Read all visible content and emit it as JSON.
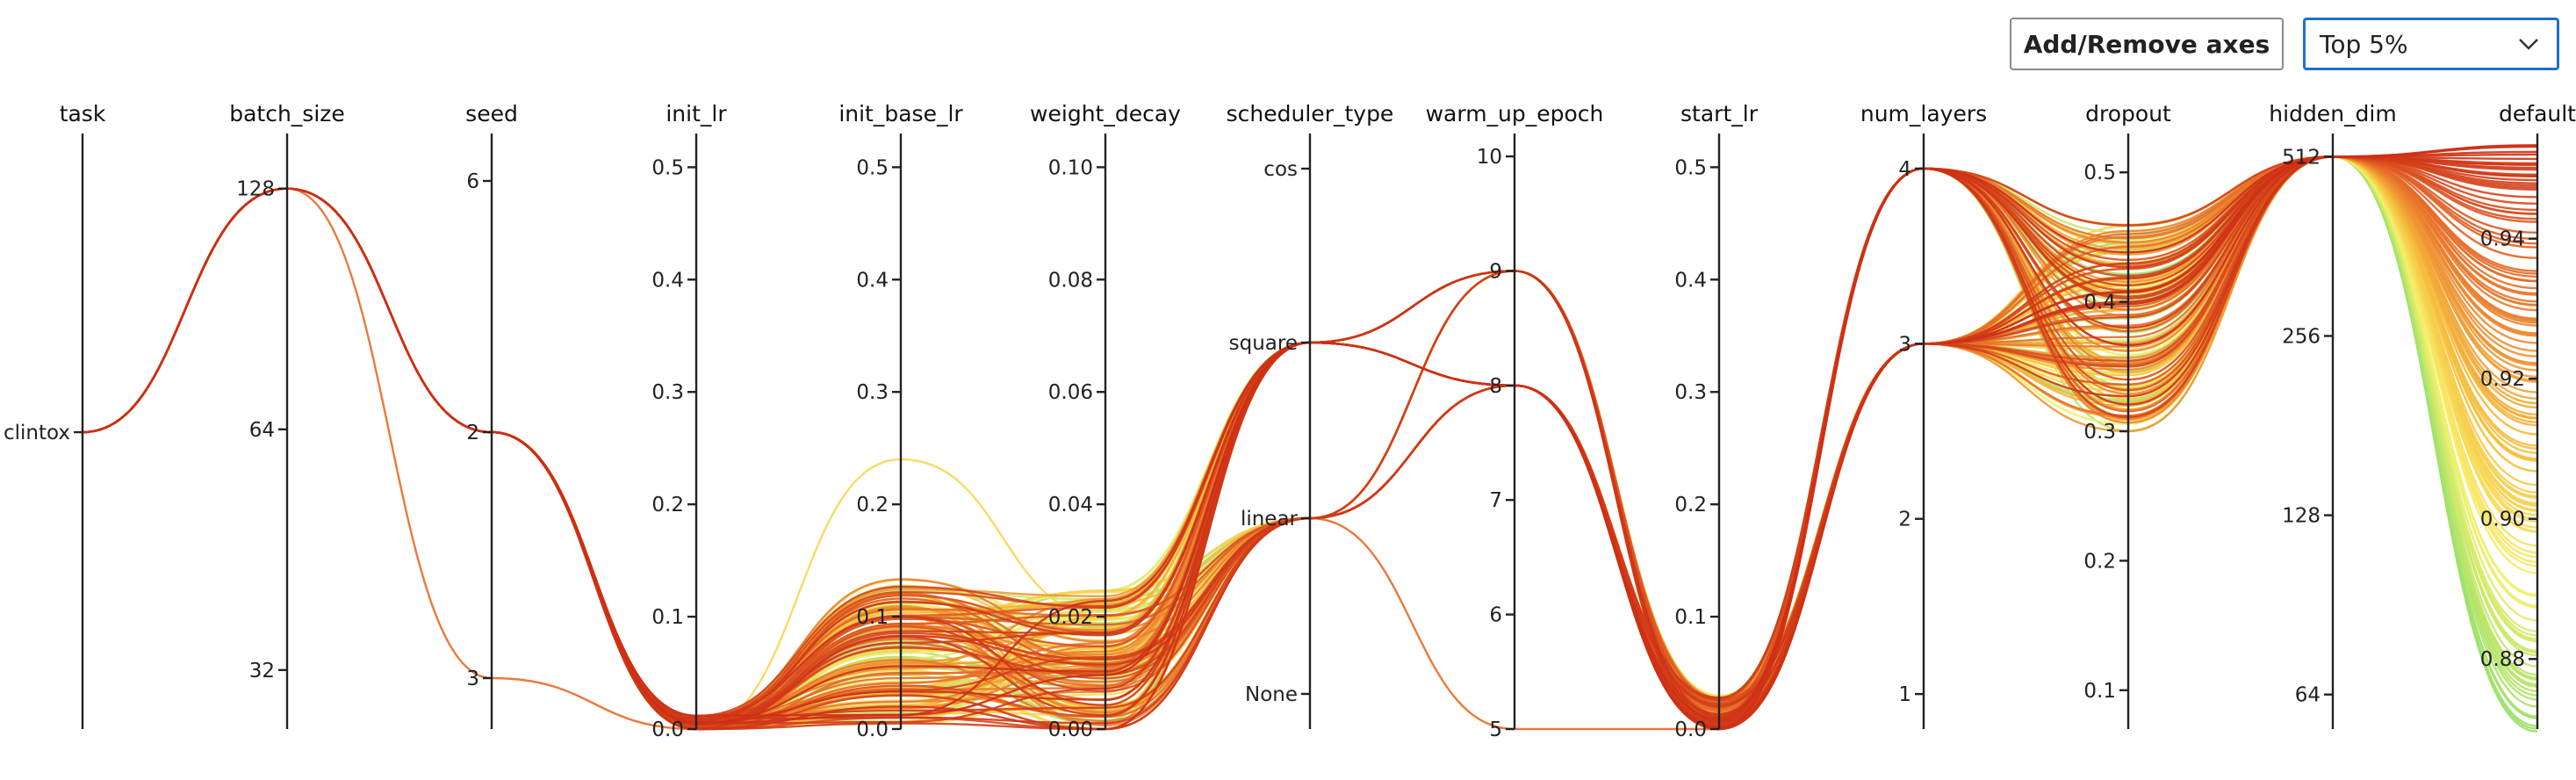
{
  "toolbar": {
    "axes_button_label": "Add/Remove axes",
    "filter_value": "Top 5%",
    "filter_icon": "chevron-down-icon"
  },
  "chart_data": {
    "type": "parallel_coordinates",
    "title": "",
    "axes": [
      {
        "name": "task",
        "kind": "categorical",
        "categories": [
          "clintox"
        ],
        "ticks": [
          "clintox"
        ]
      },
      {
        "name": "batch_size",
        "kind": "log",
        "range": [
          27,
          150
        ],
        "ticks": [
          32,
          64,
          128
        ]
      },
      {
        "name": "seed",
        "kind": "categorical",
        "categories": [
          "6",
          "2",
          "3"
        ],
        "ticks": [
          "6",
          "2",
          "3"
        ]
      },
      {
        "name": "init_lr",
        "kind": "linear",
        "range": [
          0,
          0.53
        ],
        "ticks": [
          "0.0",
          "0.1",
          "0.2",
          "0.3",
          "0.4",
          "0.5"
        ]
      },
      {
        "name": "init_base_lr",
        "kind": "linear",
        "range": [
          0,
          0.53
        ],
        "ticks": [
          "0.0",
          "0.1",
          "0.2",
          "0.3",
          "0.4",
          "0.5"
        ]
      },
      {
        "name": "weight_decay",
        "kind": "linear",
        "range": [
          0,
          0.106
        ],
        "ticks": [
          "0.00",
          "0.02",
          "0.04",
          "0.06",
          "0.08",
          "0.10"
        ]
      },
      {
        "name": "scheduler_type",
        "kind": "categorical",
        "categories": [
          "None",
          "linear",
          "square",
          "cos"
        ],
        "ticks": [
          "None",
          "linear",
          "square",
          "cos"
        ]
      },
      {
        "name": "warm_up_epoch",
        "kind": "linear",
        "range": [
          5,
          10.2
        ],
        "ticks": [
          "5",
          "6",
          "7",
          "8",
          "9",
          "10"
        ]
      },
      {
        "name": "start_lr",
        "kind": "linear",
        "range": [
          0,
          0.53
        ],
        "ticks": [
          "0.0",
          "0.1",
          "0.2",
          "0.3",
          "0.4",
          "0.5"
        ]
      },
      {
        "name": "num_layers",
        "kind": "linear",
        "range": [
          0.8,
          4.2
        ],
        "ticks": [
          "1",
          "2",
          "3",
          "4"
        ]
      },
      {
        "name": "dropout",
        "kind": "linear",
        "range": [
          0.07,
          0.53
        ],
        "ticks": [
          "0.1",
          "0.2",
          "0.3",
          "0.4",
          "0.5"
        ]
      },
      {
        "name": "hidden_dim",
        "kind": "log",
        "range": [
          56,
          560
        ],
        "ticks": [
          64,
          128,
          256,
          512
        ]
      },
      {
        "name": "default",
        "kind": "linear",
        "range": [
          0.87,
          0.955
        ],
        "ticks": [
          "0.88",
          "0.90",
          "0.92",
          "0.94"
        ]
      }
    ],
    "colorscale": [
      "#9ae06a",
      "#f7f06a",
      "#f5b93a",
      "#e8722a",
      "#cc2f15"
    ],
    "colorscale_range": [
      0.8695,
      0.9537
    ],
    "highlight_lines": [
      {
        "values": [
          "clintox",
          128,
          "2",
          0.0,
          0.02,
          0.0,
          "square",
          8,
          0.0,
          3,
          0.4,
          512,
          0.952
        ]
      },
      {
        "values": [
          "clintox",
          128,
          "2",
          0.0,
          0.005,
          0.0,
          "linear",
          9,
          0.0,
          4,
          0.38,
          512,
          0.949
        ]
      },
      {
        "values": [
          "clintox",
          128,
          "2",
          0.0,
          0.01,
          0.0,
          "square",
          9,
          0.0,
          3,
          0.35,
          512,
          0.945
        ]
      },
      {
        "values": [
          "clintox",
          128,
          "2",
          0.0,
          0.03,
          0.0,
          "linear",
          8,
          0.0,
          4,
          0.42,
          512,
          0.947
        ]
      },
      {
        "values": [
          "clintox",
          128,
          "3",
          0.0,
          0.05,
          0.01,
          "linear",
          5,
          0.0,
          3,
          0.39,
          512,
          0.935
        ]
      },
      {
        "values": [
          "clintox",
          128,
          "2",
          0.0,
          0.24,
          0.02,
          "square",
          8,
          0.0,
          3,
          0.38,
          512,
          0.9
        ]
      }
    ],
    "ensemble": {
      "count": 130,
      "seed": 7
    }
  }
}
